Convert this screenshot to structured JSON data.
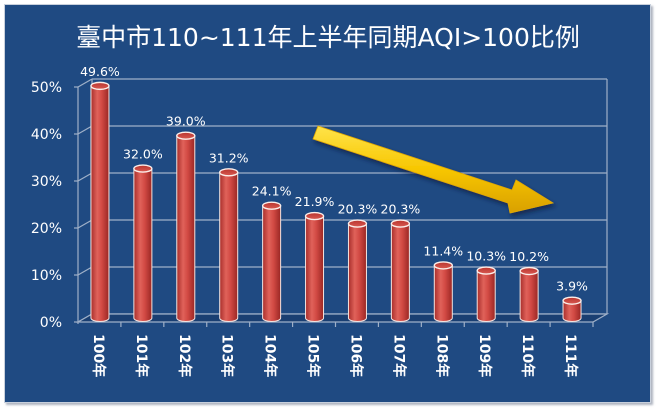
{
  "title": "臺中市110~111年上半年同期AQI>100比例",
  "colors": {
    "background": "#1f4a82",
    "bar": "#c9403c",
    "bar_highlight": "#e8736c",
    "gridline": "#9fb0c8",
    "arrow": "#f5c400",
    "text": "#ffffff"
  },
  "chart_data": {
    "type": "bar",
    "style": "3d-cylinder",
    "title": "臺中市110~111年上半年同期AQI>100比例",
    "xlabel": "",
    "ylabel": "",
    "categories": [
      "100年",
      "101年",
      "102年",
      "103年",
      "104年",
      "105年",
      "106年",
      "107年",
      "108年",
      "109年",
      "110年",
      "111年"
    ],
    "values": [
      49.6,
      32.0,
      39.0,
      31.2,
      24.1,
      21.9,
      20.3,
      20.3,
      11.4,
      10.3,
      10.2,
      3.9
    ],
    "data_labels": [
      "49.6%",
      "32.0%",
      "39.0%",
      "31.2%",
      "24.1%",
      "21.9%",
      "20.3%",
      "20.3%",
      "11.4%",
      "10.3%",
      "10.2%",
      "3.9%"
    ],
    "y_ticks": [
      "0%",
      "10%",
      "20%",
      "30%",
      "40%",
      "50%"
    ],
    "ylim": [
      0,
      50
    ],
    "grid": true,
    "legend": "none",
    "annotations": [
      "yellow downward-trend arrow from 104年 area toward 111年"
    ]
  }
}
